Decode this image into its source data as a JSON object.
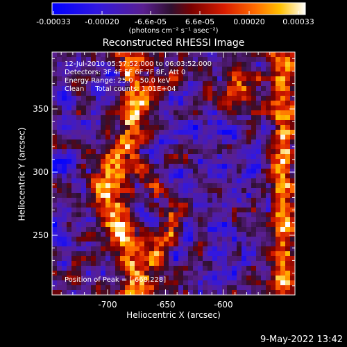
{
  "colorbar": {
    "tick_labels": [
      "-0.00033",
      "-0.00020",
      "-6.6e-05",
      "6.6e-05",
      "0.00020",
      "0.00033"
    ],
    "units": "(photons cm⁻² s⁻¹ asec⁻²)",
    "colormap": [
      "#0000ff",
      "#3a16d8",
      "#5a1f90",
      "#4c1040",
      "#7a0000",
      "#d81c00",
      "#ff5a00",
      "#ffb000",
      "#ffffff"
    ]
  },
  "title": "Reconstructed RHESSI Image",
  "info": {
    "line1": "12-Jul-2010 05:57:52.000 to 06:03:52.000",
    "line2": "Detectors: 3F 4F 5F 6F 7F 8F, Att 0",
    "line3": "Energy Range: 25.0 - 50.0 keV",
    "line4": "Clean     Total counts: 1.01E+04",
    "peak": "Position of Peak = [-668,228]"
  },
  "axes": {
    "xlabel": "Heliocentric X (arcsec)",
    "ylabel": "Heliocentric Y (arcsec)",
    "x_ticks": [
      "-700",
      "-650",
      "-600"
    ],
    "y_ticks": [
      "350",
      "300",
      "250"
    ]
  },
  "footer": {
    "date": "9-May-2022 13:42"
  }
}
